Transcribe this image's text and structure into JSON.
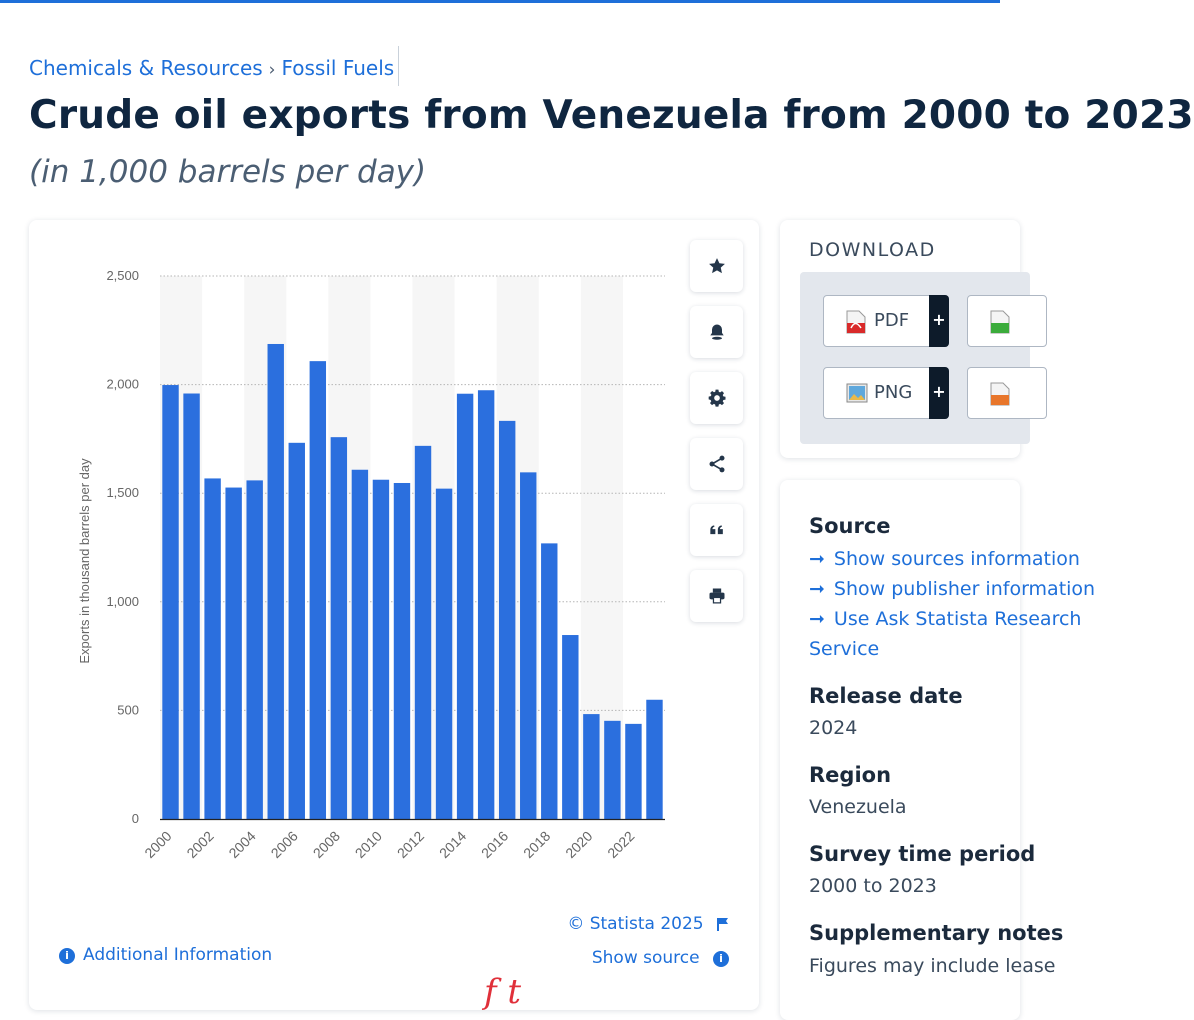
{
  "breadcrumb": {
    "category": "Chemicals & Resources",
    "separator": "›",
    "subcategory": "Fossil Fuels"
  },
  "title": "Crude oil exports from Venezuela from 2000 to 2023",
  "subtitle": "(in 1,000 barrels per day)",
  "chart_data": {
    "type": "bar",
    "x": [
      2000,
      2001,
      2002,
      2003,
      2004,
      2005,
      2006,
      2007,
      2008,
      2009,
      2010,
      2011,
      2012,
      2013,
      2014,
      2015,
      2016,
      2017,
      2018,
      2019,
      2020,
      2021,
      2022,
      2023
    ],
    "values": [
      1998,
      1959,
      1568,
      1526,
      1559,
      2187,
      1732,
      2108,
      1758,
      1608,
      1562,
      1547,
      1718,
      1521,
      1958,
      1974,
      1833,
      1596,
      1269,
      847,
      483,
      452,
      438,
      549
    ],
    "xtick_labels": [
      "2000",
      "2002",
      "2004",
      "2006",
      "2008",
      "2010",
      "2012",
      "2014",
      "2016",
      "2018",
      "2020",
      "2022"
    ],
    "ytick_values": [
      0,
      500,
      1000,
      1500,
      2000,
      2500
    ],
    "ytick_labels": [
      "0",
      "500",
      "1,000",
      "1,500",
      "2,000",
      "2,500"
    ],
    "ylabel": "Exports in thousand barrels per day",
    "ylim": [
      0,
      2500
    ],
    "grid": "horizontal dotted",
    "bar_color": "#2b6fde"
  },
  "toolbar": [
    "star-icon",
    "bell-icon",
    "gear-icon",
    "share-icon",
    "quote-icon",
    "print-icon"
  ],
  "chart_footer": {
    "copyright": "© Statista 2025",
    "show_source": "Show source",
    "additional_info": "Additional Information",
    "fragment": "f  t"
  },
  "download": {
    "title": "DOWNLOAD",
    "buttons": [
      {
        "label": "PDF"
      },
      {
        "label": "PNG"
      }
    ],
    "plus": "+"
  },
  "info": {
    "source_heading": "Source",
    "links": [
      "Show sources information",
      "Show publisher information",
      "Use Ask Statista Research"
    ],
    "links_tail": "Service",
    "release_heading": "Release date",
    "release_value": "2024",
    "region_heading": "Region",
    "region_value": "Venezuela",
    "survey_heading": "Survey time period",
    "survey_value": "2000 to 2023",
    "supp_heading": "Supplementary notes",
    "supp_value": "Figures may include lease"
  }
}
